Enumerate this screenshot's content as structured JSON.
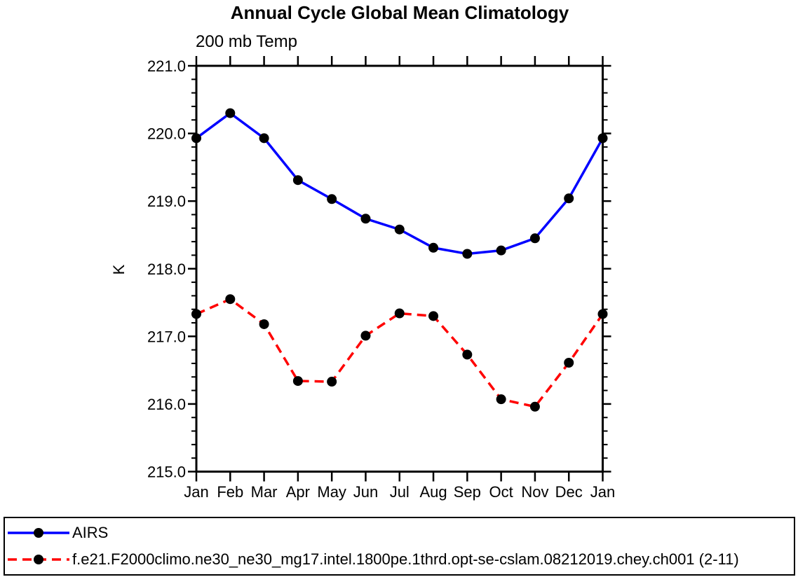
{
  "chart_data": {
    "type": "line",
    "title": "Annual Cycle Global Mean Climatology",
    "subtitle": "200 mb Temp",
    "ylabel": "K",
    "xlabel": "",
    "x_categories": [
      "Jan",
      "Feb",
      "Mar",
      "Apr",
      "May",
      "Jun",
      "Jul",
      "Aug",
      "Sep",
      "Oct",
      "Nov",
      "Dec",
      "Jan"
    ],
    "ylim": [
      215.0,
      221.0
    ],
    "y_ticks": {
      "values": [
        221.0,
        220.0,
        219.0,
        218.0,
        217.0,
        216.0,
        215.0
      ],
      "labels": [
        "221.0",
        "220.0",
        "219.0",
        "218.0",
        "217.0",
        "216.0",
        "215.0"
      ]
    },
    "y_minor_step": 0.2,
    "grid": false,
    "legend_position": "bottom-left-box",
    "colors": {
      "axis": "#000000",
      "background": "#ffffff"
    },
    "series": [
      {
        "id": "airs",
        "name": "AIRS",
        "color": "#0000ff",
        "line_style": "solid",
        "marker": "circle",
        "marker_color": "#000000",
        "values": [
          219.93,
          220.3,
          219.93,
          219.31,
          219.03,
          218.74,
          218.58,
          218.31,
          218.22,
          218.27,
          218.45,
          219.04,
          219.93
        ]
      },
      {
        "id": "model",
        "name": "f.e21.F2000climo.ne30_ne30_mg17.intel.1800pe.1thrd.opt-se-cslam.08212019.chey.ch001 (2-11)",
        "color": "#ff0000",
        "line_style": "dashed",
        "marker": "circle",
        "marker_color": "#000000",
        "values": [
          217.33,
          217.55,
          217.18,
          216.34,
          216.33,
          217.01,
          217.34,
          217.3,
          216.73,
          216.07,
          215.96,
          216.61,
          217.33
        ]
      }
    ]
  }
}
